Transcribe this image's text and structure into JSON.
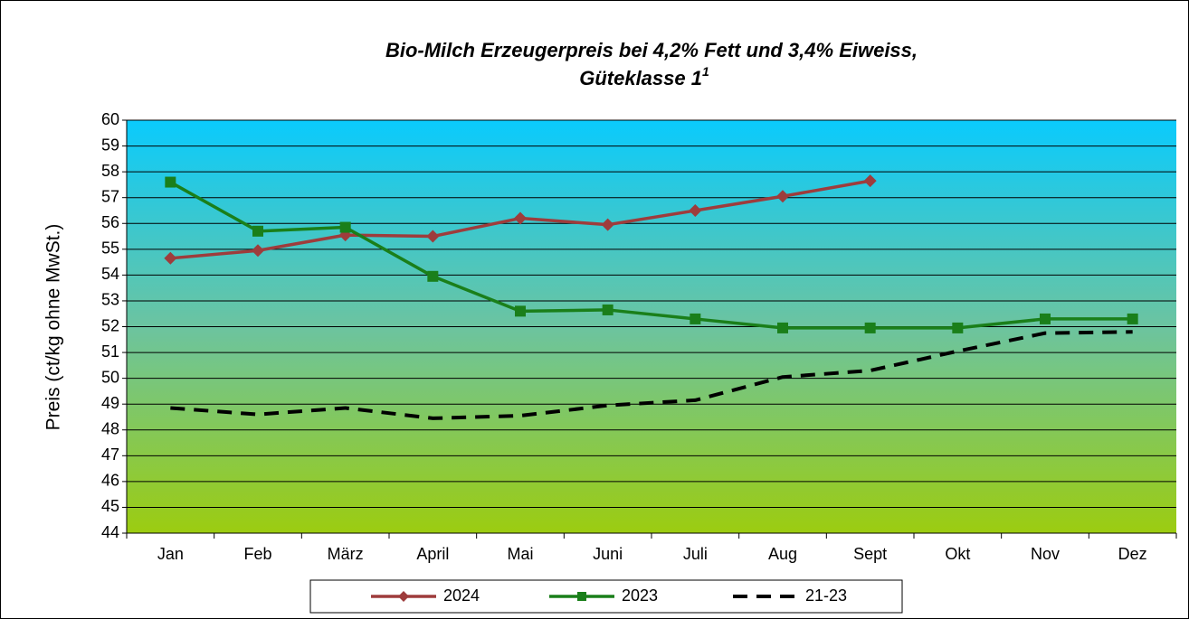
{
  "chart_data": {
    "type": "line",
    "title_lines": [
      "Bio-Milch Erzeugerpreis bei 4,2% Fett und 3,4% Eiweiss,",
      "Güteklasse 1"
    ],
    "title_footnote_mark": "1",
    "y_label": "Preis (ct/kg ohne MwSt.)",
    "categories": [
      "Jan",
      "Feb",
      "März",
      "April",
      "Mai",
      "Juni",
      "Juli",
      "Aug",
      "Sept",
      "Okt",
      "Nov",
      "Dez"
    ],
    "series": [
      {
        "name": "2024",
        "color": "#9e3c3c",
        "marker": "diamond",
        "dashed": false,
        "values": [
          54.65,
          54.95,
          55.55,
          55.5,
          56.2,
          55.95,
          56.5,
          57.05,
          57.65,
          null,
          null,
          null
        ]
      },
      {
        "name": "2023",
        "color": "#1a7f1a",
        "marker": "square",
        "dashed": false,
        "values": [
          57.6,
          55.7,
          55.85,
          53.95,
          52.6,
          52.65,
          52.3,
          51.95,
          51.95,
          51.95,
          52.3,
          52.3
        ]
      },
      {
        "name": "21-23",
        "color": "#000000",
        "marker": "none",
        "dashed": true,
        "values": [
          48.85,
          48.6,
          48.85,
          48.45,
          48.55,
          48.95,
          49.15,
          50.05,
          50.3,
          51.05,
          51.75,
          51.8
        ]
      }
    ],
    "ylim": [
      44,
      60
    ],
    "yticks": [
      44,
      45,
      46,
      47,
      48,
      49,
      50,
      51,
      52,
      53,
      54,
      55,
      56,
      57,
      58,
      59,
      60
    ],
    "grid": true,
    "legend": "bottom"
  }
}
